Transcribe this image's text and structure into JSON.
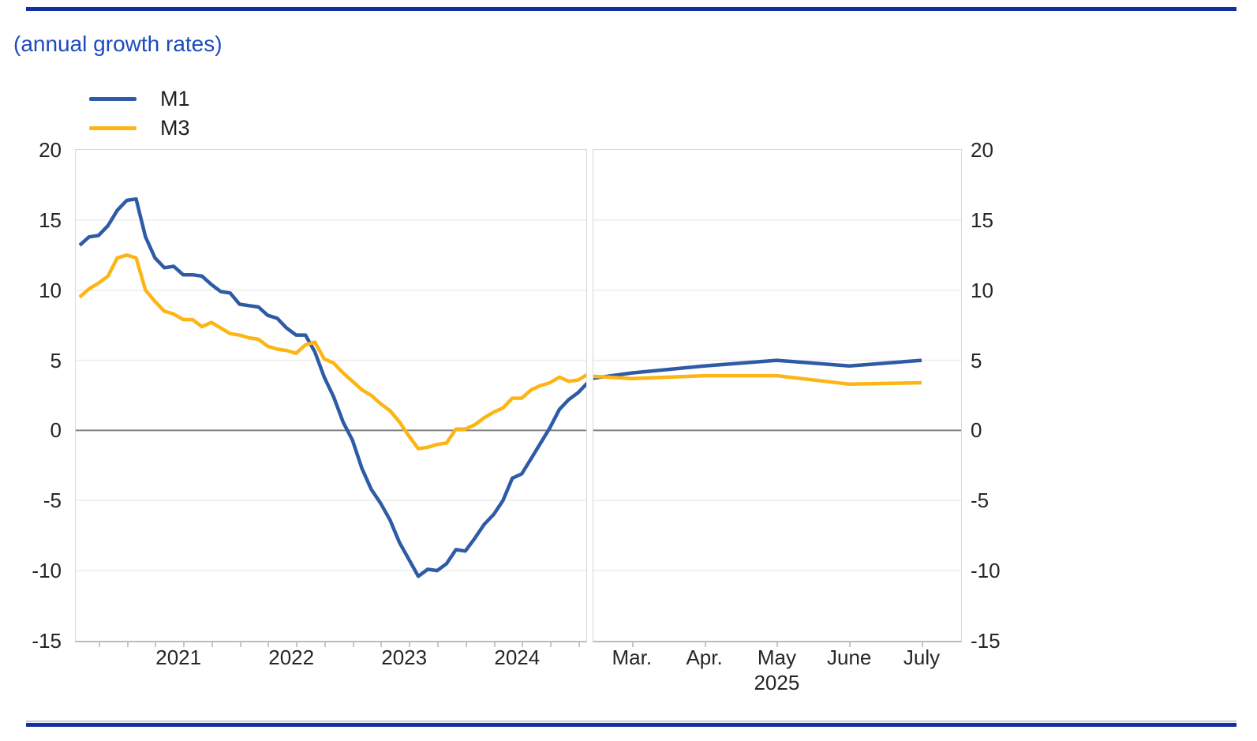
{
  "page": {
    "title": "(annual growth rates)",
    "accent_color": "#1c4bbe",
    "rule_color": "#142ea3"
  },
  "legend": {
    "items": [
      {
        "label": "M1",
        "color": "#2d5ba6"
      },
      {
        "label": "M3",
        "color": "#fcb515"
      }
    ]
  },
  "chart_data": {
    "type": "line",
    "title": "(annual growth rates)",
    "xlabel": "",
    "ylabel": "",
    "ylim": [
      -15,
      20
    ],
    "y_ticks": [
      20,
      15,
      10,
      5,
      0,
      -5,
      -10,
      -15
    ],
    "y_axis_sides": [
      "left",
      "right"
    ],
    "grid": true,
    "gridline_color": "#ececec",
    "zero_line_color": "#808080",
    "legend_position": "top-left",
    "series_meta": [
      {
        "name": "M1",
        "color": "#2d5ba6"
      },
      {
        "name": "M3",
        "color": "#fcb515"
      }
    ],
    "panels": [
      {
        "name": "left",
        "x_tick_labels": [
          "2021",
          "2022",
          "2023",
          "2024"
        ],
        "months": [
          "2020-08",
          "2020-09",
          "2020-10",
          "2020-11",
          "2020-12",
          "2021-01",
          "2021-02",
          "2021-03",
          "2021-04",
          "2021-05",
          "2021-06",
          "2021-07",
          "2021-08",
          "2021-09",
          "2021-10",
          "2021-11",
          "2021-12",
          "2022-01",
          "2022-02",
          "2022-03",
          "2022-04",
          "2022-05",
          "2022-06",
          "2022-07",
          "2022-08",
          "2022-09",
          "2022-10",
          "2022-11",
          "2022-12",
          "2023-01",
          "2023-02",
          "2023-03",
          "2023-04",
          "2023-05",
          "2023-06",
          "2023-07",
          "2023-08",
          "2023-09",
          "2023-10",
          "2023-11",
          "2023-12",
          "2024-01",
          "2024-02",
          "2024-03",
          "2024-04",
          "2024-05",
          "2024-06",
          "2024-07",
          "2024-08",
          "2024-09",
          "2024-10",
          "2024-11",
          "2024-12",
          "2025-01",
          "2025-02"
        ],
        "series": [
          {
            "name": "M1",
            "values": [
              13.2,
              13.8,
              13.9,
              14.6,
              15.7,
              16.4,
              16.5,
              13.8,
              12.3,
              11.6,
              11.7,
              11.1,
              11.1,
              11.0,
              10.4,
              9.9,
              9.8,
              9.0,
              8.9,
              8.8,
              8.2,
              8.0,
              7.3,
              6.8,
              6.8,
              5.6,
              3.8,
              2.4,
              0.6,
              -0.7,
              -2.7,
              -4.2,
              -5.2,
              -6.4,
              -8.0,
              -9.2,
              -10.4,
              -9.9,
              -10.0,
              -9.5,
              -8.5,
              -8.6,
              -7.7,
              -6.7,
              -6.0,
              -5.0,
              -3.4,
              -3.1,
              -2.0,
              -0.9,
              0.2,
              1.5,
              2.2,
              2.7,
              3.4
            ]
          },
          {
            "name": "M3",
            "values": [
              9.5,
              10.1,
              10.5,
              11.0,
              12.3,
              12.5,
              12.3,
              10.0,
              9.2,
              8.5,
              8.3,
              7.9,
              7.9,
              7.4,
              7.7,
              7.3,
              6.9,
              6.8,
              6.6,
              6.5,
              6.0,
              5.8,
              5.7,
              5.5,
              6.1,
              6.3,
              5.1,
              4.8,
              4.1,
              3.5,
              2.9,
              2.5,
              1.9,
              1.4,
              0.6,
              -0.4,
              -1.3,
              -1.2,
              -1.0,
              -0.9,
              0.1,
              0.1,
              0.4,
              0.9,
              1.3,
              1.6,
              2.3,
              2.3,
              2.9,
              3.2,
              3.4,
              3.8,
              3.5,
              3.6,
              4.0
            ]
          }
        ]
      },
      {
        "name": "right",
        "x_tick_labels": [
          "Mar.",
          "Apr.",
          "May",
          "June",
          "July"
        ],
        "x_year_label": "2025",
        "months": [
          "2025-02",
          "2025-03",
          "2025-04",
          "2025-05",
          "2025-06",
          "2025-07"
        ],
        "series": [
          {
            "name": "M1",
            "values": [
              3.4,
              4.1,
              4.6,
              5.0,
              4.6,
              5.0
            ]
          },
          {
            "name": "M3",
            "values": [
              4.0,
              3.7,
              3.9,
              3.9,
              3.3,
              3.4
            ]
          }
        ]
      }
    ]
  }
}
